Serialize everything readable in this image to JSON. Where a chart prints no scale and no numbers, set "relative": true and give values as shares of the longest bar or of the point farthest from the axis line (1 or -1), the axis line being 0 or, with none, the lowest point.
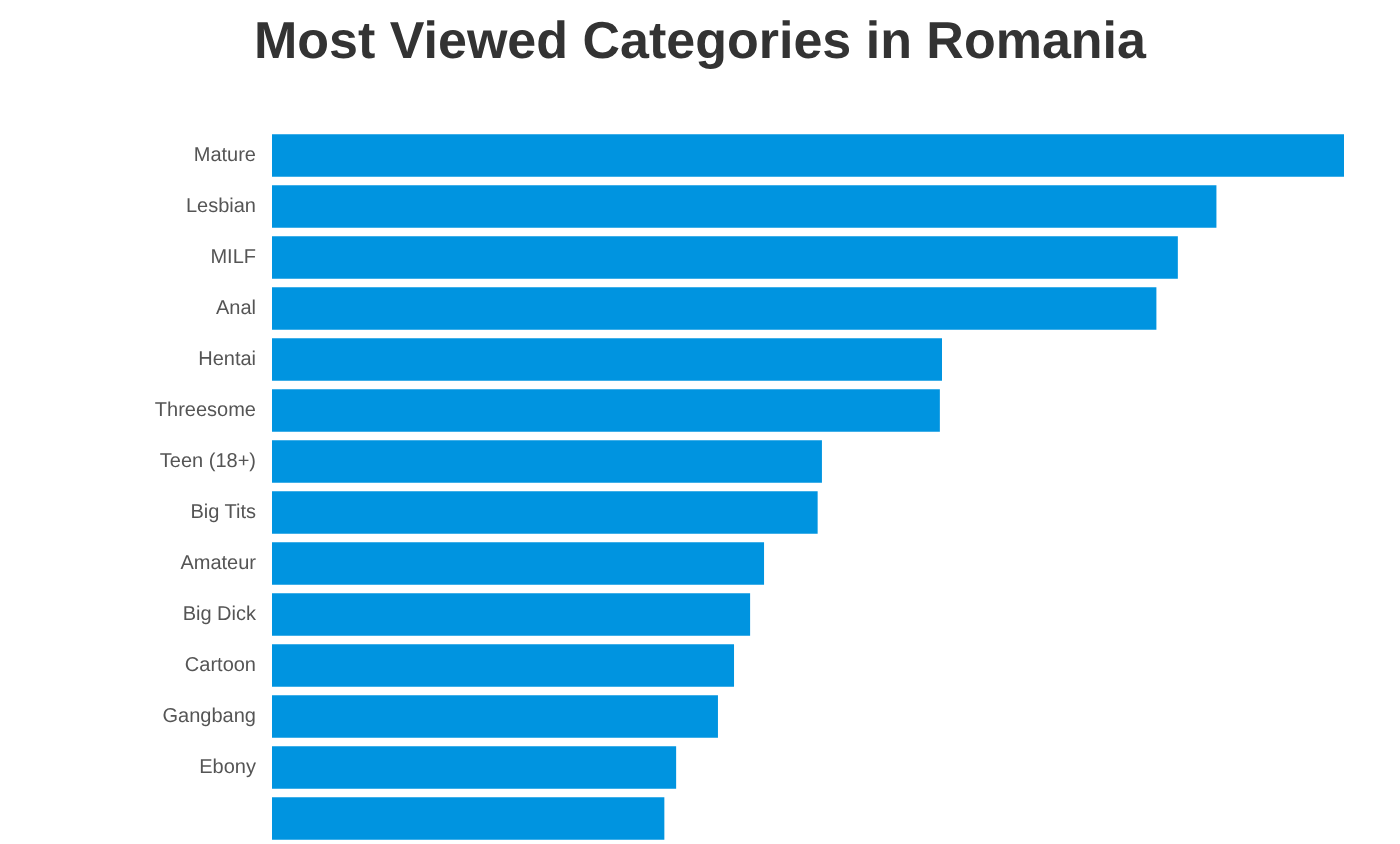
{
  "chart_data": {
    "type": "bar",
    "orientation": "horizontal",
    "relative": true,
    "title": "Most Viewed Categories in Romania",
    "categories": [
      "Mature",
      "Lesbian",
      "MILF",
      "Anal",
      "Hentai",
      "Threesome",
      "Teen (18+)",
      "Big Tits",
      "Amateur",
      "Big Dick",
      "Cartoon",
      "Gangbang",
      "Ebony",
      null
    ],
    "values": [
      1,
      0.881,
      0.845,
      0.825,
      0.625,
      0.623,
      0.513,
      0.509,
      0.459,
      0.446,
      0.431,
      0.416,
      0.377,
      0.366
    ],
    "color": "#0094e0"
  }
}
